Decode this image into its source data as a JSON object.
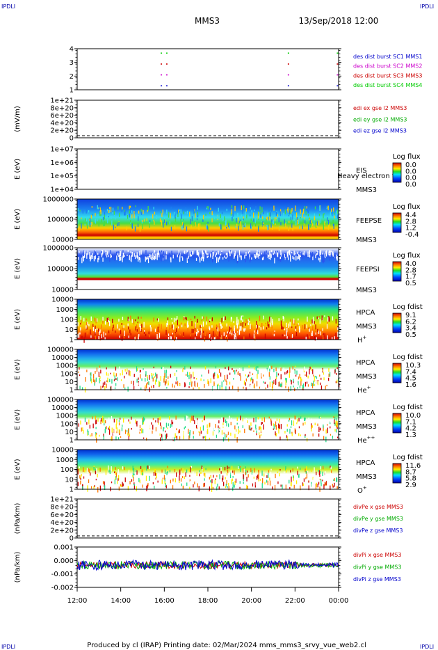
{
  "corner_label": "IPDLI",
  "header": {
    "title": "MMS3",
    "datetime": "13/Sep/2018 12:00"
  },
  "footer": {
    "text": "Produced by cl (IRAP)   Printing date: 02/Mar/2024   mms_mms3_srvy_vue_web2.cl"
  },
  "time_axis": {
    "ticks": [
      "12:00",
      "14:00",
      "16:00",
      "18:00",
      "20:00",
      "22:00",
      "00:00"
    ]
  },
  "panels": [
    {
      "id": "burst",
      "ylabel": "",
      "yticks": [
        "4",
        "3",
        "2",
        "1"
      ],
      "legend": [
        {
          "text": "des dist burst SC1 MMS1",
          "color": "#0000cc"
        },
        {
          "text": "des dist burst SC2 MMS2",
          "color": "#cc00cc"
        },
        {
          "text": "des dist burst SC3 MMS3",
          "color": "#cc0000"
        },
        {
          "text": "des dist burst SC4 MMS4",
          "color": "#00cc00"
        }
      ]
    },
    {
      "id": "edi",
      "ylabel": "(mV/m)",
      "yticks": [
        "1e+21",
        "8e+20",
        "6e+20",
        "4e+20",
        "2e+20",
        "0"
      ],
      "legend": [
        {
          "text": "edi ex gse l2 MMS3",
          "color": "#cc0000"
        },
        {
          "text": "edi ey gse l2 MMS3",
          "color": "#00aa00"
        },
        {
          "text": "edi ez gse l2 MMS3",
          "color": "#0000cc"
        }
      ]
    },
    {
      "id": "eis",
      "ylabel": "E (eV)",
      "yticks": [
        "1e+07",
        "1e+06",
        "1e+05",
        "1e+04"
      ],
      "instrument": "EIS",
      "extra": "Heavy electron to",
      "spacecraft": "MMS3",
      "colorbar": {
        "title": "Log flux",
        "ticks": [
          "0.0",
          "0.0",
          "0.0",
          "0.0"
        ]
      }
    },
    {
      "id": "feepse",
      "ylabel": "E (eV)",
      "yticks": [
        "1000000",
        "100000",
        "10000"
      ],
      "instrument": "FEEPSE",
      "spacecraft": "MMS3",
      "colorbar": {
        "title": "Log flux",
        "ticks": [
          "4.4",
          "2.8",
          "1.2",
          "-0.4"
        ]
      }
    },
    {
      "id": "feepsi",
      "ylabel": "E (eV)",
      "yticks": [
        "1000000",
        "100000",
        "10000"
      ],
      "instrument": "FEEPSI",
      "spacecraft": "MMS3",
      "colorbar": {
        "title": "Log flux",
        "ticks": [
          "4.0",
          "2.8",
          "1.7",
          "0.5"
        ]
      }
    },
    {
      "id": "hpca_h",
      "ylabel": "E (eV)",
      "yticks": [
        "10000",
        "1000",
        "100",
        "10",
        "1"
      ],
      "instrument": "HPCA",
      "spacecraft": "MMS3",
      "species": "H",
      "species_sup": "+",
      "colorbar": {
        "title": "Log fdist",
        "ticks": [
          "9.1",
          "6.2",
          "3.4",
          "0.5"
        ]
      }
    },
    {
      "id": "hpca_he",
      "ylabel": "E (eV)",
      "yticks": [
        "100000",
        "10000",
        "1000",
        "100",
        "10",
        "1"
      ],
      "instrument": "HPCA",
      "spacecraft": "MMS3",
      "species": "He",
      "species_sup": "+",
      "colorbar": {
        "title": "Log fdist",
        "ticks": [
          "10.3",
          "7.4",
          "4.5",
          "1.6"
        ]
      }
    },
    {
      "id": "hpca_hepp",
      "ylabel": "E (eV)",
      "yticks": [
        "100000",
        "10000",
        "1000",
        "100",
        "10",
        "1"
      ],
      "instrument": "HPCA",
      "spacecraft": "MMS3",
      "species": "He",
      "species_sup": "++",
      "colorbar": {
        "title": "Log fdist",
        "ticks": [
          "10.0",
          "7.1",
          "4.2",
          "1.3"
        ]
      }
    },
    {
      "id": "hpca_o",
      "ylabel": "E (eV)",
      "yticks": [
        "10000",
        "1000",
        "100",
        "10",
        "1"
      ],
      "instrument": "HPCA",
      "spacecraft": "MMS3",
      "species": "O",
      "species_sup": "+",
      "colorbar": {
        "title": "Log fdist",
        "ticks": [
          "11.6",
          "8.7",
          "5.8",
          "2.9"
        ]
      }
    },
    {
      "id": "divpe",
      "ylabel": "(nPa/km)",
      "yticks": [
        "1e+21",
        "8e+20",
        "6e+20",
        "4e+20",
        "2e+20",
        "0"
      ],
      "legend": [
        {
          "text": "divPe x gse MMS3",
          "color": "#cc0000"
        },
        {
          "text": "divPe y gse MMS3",
          "color": "#00aa00"
        },
        {
          "text": "divPe z gse MMS3",
          "color": "#0000cc"
        }
      ]
    },
    {
      "id": "divpi",
      "ylabel": "(nPa/km)",
      "yticks": [
        "0.001",
        "0.000",
        "-0.001",
        "-0.002"
      ],
      "legend": [
        {
          "text": "divPi x gse MMS3",
          "color": "#cc0000"
        },
        {
          "text": "divPi y gse MMS3",
          "color": "#00aa00"
        },
        {
          "text": "divPi z gse MMS3",
          "color": "#0000cc"
        }
      ]
    }
  ],
  "chart_data": {
    "type": "heatmap",
    "title": "MMS3",
    "x_range": [
      "2018-09-13 12:00",
      "2018-09-14 00:00"
    ],
    "series": [
      {
        "name": "des dist burst SC1 MMS1",
        "panel": "burst",
        "times": [
          "15:50",
          "16:05",
          "21:40",
          "23:55"
        ],
        "value": 1
      },
      {
        "name": "des dist burst SC2 MMS2",
        "panel": "burst",
        "times": [
          "15:50",
          "16:05",
          "21:40",
          "23:55"
        ],
        "value": 2
      },
      {
        "name": "des dist burst SC3 MMS3",
        "panel": "burst",
        "times": [
          "15:50",
          "16:05",
          "21:40",
          "23:55"
        ],
        "value": 3
      },
      {
        "name": "des dist burst SC4 MMS4",
        "panel": "burst",
        "times": [
          "15:50",
          "16:05",
          "21:40",
          "23:55"
        ],
        "value": 4
      }
    ],
    "divPi_ylim": [
      -0.0025,
      0.0015
    ]
  }
}
